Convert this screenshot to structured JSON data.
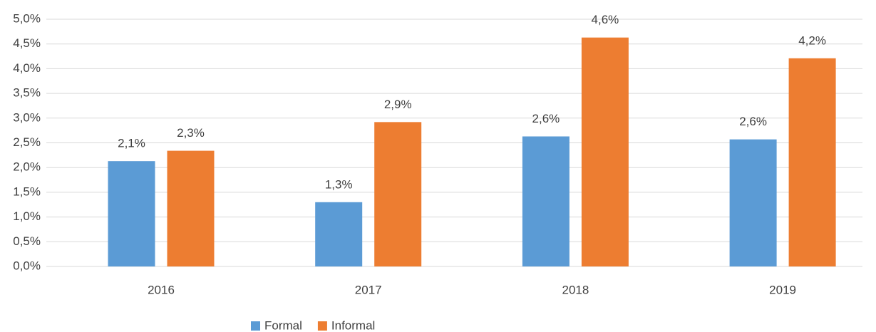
{
  "chart_data": {
    "type": "bar",
    "categories": [
      "2016",
      "2017",
      "2018",
      "2019"
    ],
    "series": [
      {
        "name": "Formal",
        "color": "#5b9bd5",
        "values": [
          2.13,
          1.3,
          2.63,
          2.57
        ],
        "value_labels": [
          "2,1%",
          "1,3%",
          "2,6%",
          "2,6%"
        ]
      },
      {
        "name": "Informal",
        "color": "#ed7d31",
        "values": [
          2.34,
          2.92,
          4.63,
          4.21
        ],
        "value_labels": [
          "2,3%",
          "2,9%",
          "4,6%",
          "4,2%"
        ]
      }
    ],
    "ylim": [
      0,
      5
    ],
    "yticks": [
      {
        "value": 0,
        "label": "0,0%"
      },
      {
        "value": 0.5,
        "label": "0,5%"
      },
      {
        "value": 1,
        "label": "1,0%"
      },
      {
        "value": 1.5,
        "label": "1,5%"
      },
      {
        "value": 2,
        "label": "2,0%"
      },
      {
        "value": 2.5,
        "label": "2,5%"
      },
      {
        "value": 3,
        "label": "3,0%"
      },
      {
        "value": 3.5,
        "label": "3,5%"
      },
      {
        "value": 4,
        "label": "4,0%"
      },
      {
        "value": 4.5,
        "label": "4,5%"
      },
      {
        "value": 5,
        "label": "5,0%"
      }
    ],
    "grid": true,
    "legend": "bottom"
  }
}
